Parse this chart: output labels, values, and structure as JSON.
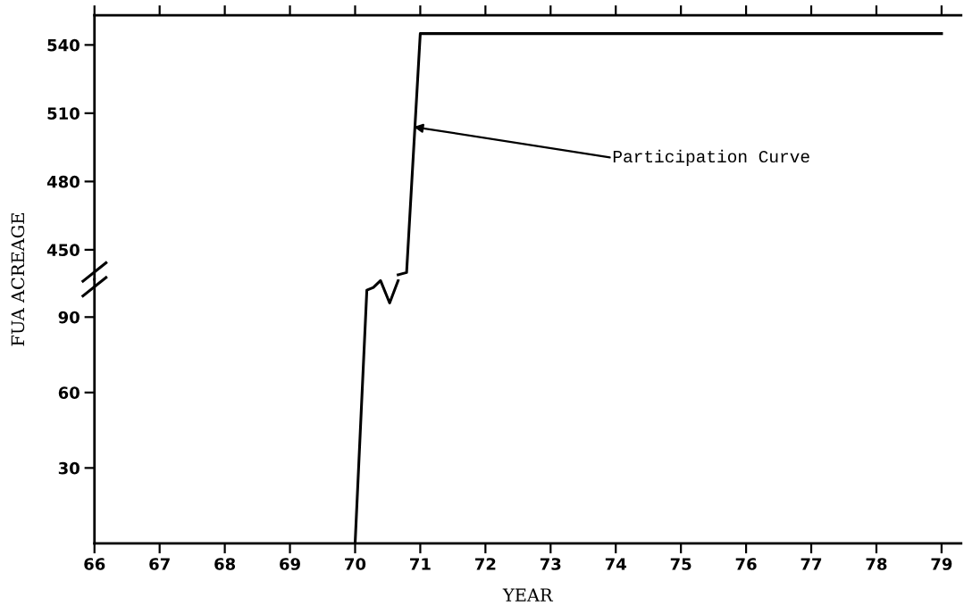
{
  "chart_data": [
    {
      "type": "line",
      "xlim": [
        66,
        79.3
      ],
      "xticks": [
        {
          "value": 66,
          "label": null
        },
        {
          "value": 67,
          "label": null
        },
        {
          "value": 68,
          "label": null
        },
        {
          "value": 69,
          "label": null
        },
        {
          "value": 70,
          "label": null
        },
        {
          "value": 71,
          "label": null
        },
        {
          "value": 72,
          "label": null
        },
        {
          "value": 73,
          "label": null
        },
        {
          "value": 74,
          "label": null
        },
        {
          "value": 75,
          "label": null
        },
        {
          "value": 76,
          "label": null
        },
        {
          "value": 77,
          "label": null
        },
        {
          "value": 78,
          "label": null
        },
        {
          "value": 79,
          "label": null
        }
      ],
      "ylim": [
        437,
        553
      ],
      "yticks": [
        450,
        480,
        510,
        540
      ],
      "tick_labels": "y",
      "ylabel": "FUA ACREAGE",
      "grid": false,
      "legend": false,
      "marker": "none",
      "series": [
        {
          "color": "#000000",
          "x": [
            70.66,
            70.79,
            71.0,
            79
          ],
          "values": [
            439,
            440,
            545,
            545
          ]
        }
      ],
      "annotations": [
        {
          "text": "Participation Curve",
          "x": 70.9,
          "y": 504
        }
      ]
    },
    {
      "type": "line",
      "xlim": [
        66,
        79.3
      ],
      "xticks": [
        66,
        67,
        68,
        69,
        70,
        71,
        72,
        73,
        74,
        75,
        76,
        77,
        78,
        79
      ],
      "ylim": [
        0,
        105
      ],
      "yticks": [
        30,
        60,
        90
      ],
      "xlabel": "YEAR",
      "grid": false,
      "legend": false,
      "marker": "none",
      "series": [
        {
          "color": "#000000",
          "x": [
            70.0,
            70.18,
            70.28,
            70.39,
            70.53,
            70.66
          ],
          "values": [
            0,
            100.7,
            101.8,
            104.5,
            95.6,
            104.5
          ]
        }
      ]
    }
  ]
}
